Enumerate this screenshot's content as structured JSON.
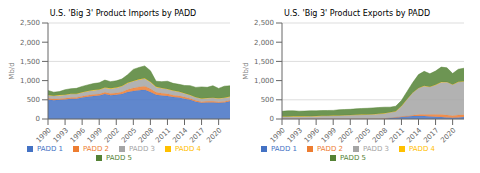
{
  "chart_data": [
    {
      "type": "area",
      "title": "U.S. 'Big 3' Product Imports by PADD",
      "y_label": "Mb/d",
      "stacked": true,
      "grid": true,
      "legend": "bottom",
      "x": [
        1990,
        1991,
        1992,
        1993,
        1994,
        1995,
        1996,
        1997,
        1998,
        1999,
        2000,
        2001,
        2002,
        2003,
        2004,
        2005,
        2006,
        2007,
        2008,
        2009,
        2010,
        2011,
        2012,
        2013,
        2014,
        2015,
        2016,
        2017,
        2018,
        2019,
        2020,
        2021,
        2022
      ],
      "xlim": [
        1990,
        2022
      ],
      "xticks": [
        1990,
        1993,
        1996,
        1999,
        2002,
        2005,
        2008,
        2011,
        2014,
        2017,
        2020
      ],
      "ylim": [
        0,
        2500
      ],
      "yticks": [
        0,
        500,
        {
          "value": 1000,
          "label": "1,000"
        },
        {
          "value": 1500,
          "label": "1,500"
        },
        {
          "value": 2000,
          "label": "2,000"
        },
        {
          "value": 2500,
          "label": "2,500"
        }
      ],
      "series": [
        {
          "name": "PADD 1",
          "color": "#4472c4",
          "values": [
            510,
            490,
            500,
            510,
            530,
            530,
            560,
            580,
            600,
            610,
            650,
            620,
            630,
            650,
            700,
            730,
            750,
            760,
            700,
            630,
            610,
            600,
            570,
            560,
            530,
            500,
            450,
            420,
            430,
            430,
            420,
            430,
            460
          ]
        },
        {
          "name": "PADD 2",
          "color": "#ed7d31",
          "values": [
            30,
            30,
            30,
            30,
            30,
            30,
            35,
            40,
            40,
            40,
            45,
            45,
            45,
            55,
            65,
            75,
            85,
            95,
            85,
            65,
            60,
            55,
            50,
            45,
            40,
            35,
            30,
            30,
            30,
            30,
            28,
            28,
            28
          ]
        },
        {
          "name": "PADD 3",
          "color": "#a5a5a5",
          "values": [
            80,
            80,
            85,
            85,
            90,
            90,
            95,
            100,
            105,
            110,
            115,
            125,
            135,
            145,
            165,
            175,
            185,
            195,
            175,
            135,
            130,
            120,
            115,
            105,
            95,
            85,
            80,
            78,
            82,
            88,
            85,
            88,
            88
          ]
        },
        {
          "name": "PADD 4",
          "color": "#ffc000",
          "values": [
            8,
            8,
            8,
            8,
            8,
            8,
            8,
            8,
            8,
            8,
            8,
            8,
            8,
            8,
            12,
            12,
            12,
            12,
            12,
            8,
            8,
            8,
            8,
            8,
            8,
            8,
            8,
            8,
            8,
            8,
            8,
            8,
            8
          ]
        },
        {
          "name": "PADD 5",
          "color": "#548235",
          "values": [
            115,
            90,
            90,
            130,
            130,
            140,
            150,
            160,
            170,
            175,
            195,
            175,
            175,
            185,
            210,
            300,
            310,
            320,
            285,
            145,
            165,
            200,
            185,
            185,
            200,
            240,
            255,
            300,
            275,
            310,
            255,
            300,
            280
          ]
        }
      ]
    },
    {
      "type": "area",
      "title": "U.S. 'Big 3' Product Exports by PADD",
      "y_label": "Mb/d",
      "stacked": true,
      "grid": true,
      "legend": "bottom",
      "x": [
        1990,
        1991,
        1992,
        1993,
        1994,
        1995,
        1996,
        1997,
        1998,
        1999,
        2000,
        2001,
        2002,
        2003,
        2004,
        2005,
        2006,
        2007,
        2008,
        2009,
        2010,
        2011,
        2012,
        2013,
        2014,
        2015,
        2016,
        2017,
        2018,
        2019,
        2020,
        2021,
        2022
      ],
      "xlim": [
        1990,
        2022
      ],
      "xticks": [
        1990,
        1993,
        1996,
        1999,
        2002,
        2005,
        2008,
        2011,
        2014,
        2017,
        2020
      ],
      "ylim": [
        0,
        2500
      ],
      "yticks": [
        0,
        500,
        {
          "value": 1000,
          "label": "1,000"
        },
        {
          "value": 1500,
          "label": "1,500"
        },
        {
          "value": 2000,
          "label": "2,000"
        },
        {
          "value": 2500,
          "label": "2,500"
        }
      ],
      "series": [
        {
          "name": "PADD 1",
          "color": "#4472c4",
          "values": [
            3,
            3,
            3,
            3,
            3,
            3,
            3,
            3,
            3,
            3,
            3,
            3,
            3,
            3,
            3,
            3,
            3,
            3,
            8,
            25,
            40,
            55,
            65,
            75,
            80,
            75,
            65,
            58,
            50,
            42,
            35,
            42,
            50
          ]
        },
        {
          "name": "PADD 2",
          "color": "#ed7d31",
          "values": [
            3,
            3,
            3,
            3,
            3,
            3,
            3,
            3,
            3,
            3,
            3,
            3,
            3,
            3,
            3,
            3,
            3,
            3,
            3,
            3,
            3,
            8,
            15,
            25,
            35,
            45,
            52,
            60,
            70,
            60,
            52,
            62,
            62
          ]
        },
        {
          "name": "PADD 3",
          "color": "#a5a5a5",
          "values": [
            55,
            58,
            60,
            60,
            62,
            65,
            68,
            75,
            78,
            80,
            85,
            90,
            95,
            100,
            105,
            110,
            115,
            125,
            135,
            145,
            155,
            270,
            440,
            590,
            690,
            740,
            720,
            770,
            840,
            860,
            810,
            860,
            870
          ]
        },
        {
          "name": "PADD 4",
          "color": "#ffc000",
          "values": [
            3,
            3,
            3,
            3,
            3,
            3,
            3,
            3,
            3,
            3,
            3,
            3,
            3,
            3,
            3,
            3,
            3,
            3,
            3,
            3,
            3,
            3,
            3,
            3,
            3,
            3,
            3,
            3,
            3,
            3,
            3,
            3,
            3
          ]
        },
        {
          "name": "PADD 5",
          "color": "#548235",
          "values": [
            135,
            145,
            145,
            135,
            135,
            140,
            135,
            135,
            135,
            135,
            145,
            148,
            148,
            155,
            160,
            160,
            165,
            165,
            158,
            132,
            132,
            145,
            195,
            258,
            348,
            378,
            338,
            358,
            388,
            368,
            285,
            328,
            338
          ]
        }
      ]
    }
  ]
}
